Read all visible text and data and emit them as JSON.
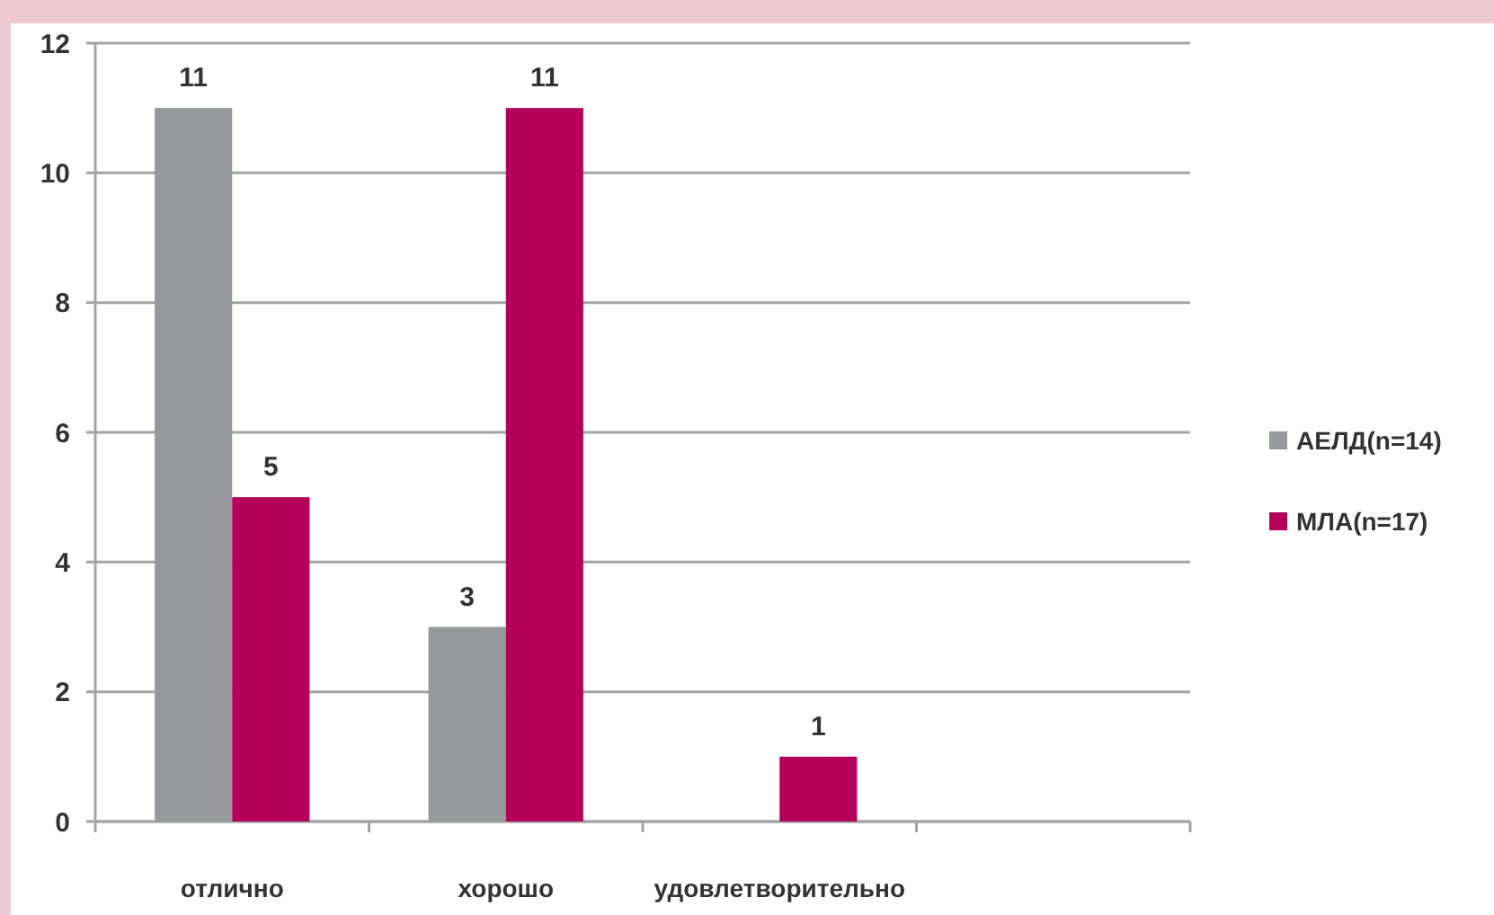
{
  "chart_data": {
    "type": "bar",
    "categories": [
      "отлично",
      "хорошо",
      "удовлетворительно",
      null
    ],
    "series": [
      {
        "name": "АЕЛД(n=14)",
        "color": "#97989c",
        "values": [
          11,
          3,
          null,
          null
        ]
      },
      {
        "name": "МЛА(n=17)",
        "color": "#b5005a",
        "values": [
          5,
          11,
          1,
          null
        ]
      }
    ],
    "ylim": [
      0,
      12
    ],
    "yticks": [
      0,
      2,
      4,
      6,
      8,
      10,
      12
    ],
    "grid": "y",
    "legend": "right",
    "data_labels": true
  }
}
